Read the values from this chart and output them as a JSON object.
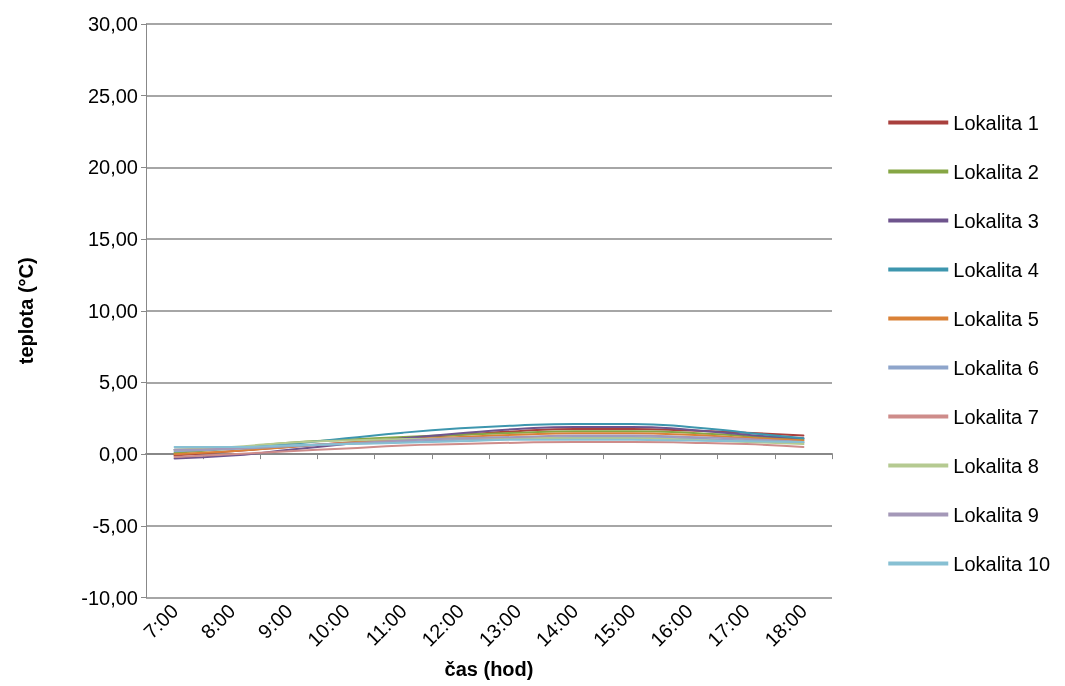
{
  "chart_data": {
    "type": "line",
    "xlabel": "čas (hod)",
    "ylabel": "teplota (°C)",
    "categories": [
      "7:00",
      "8:00",
      "9:00",
      "10:00",
      "11:00",
      "12:00",
      "13:00",
      "14:00",
      "15:00",
      "16:00",
      "17:00",
      "18:00"
    ],
    "ylim": [
      -10,
      30
    ],
    "yticks": [
      {
        "value": -10,
        "label": "-10,00"
      },
      {
        "value": -5,
        "label": "-5,00"
      },
      {
        "value": 0,
        "label": "0,00"
      },
      {
        "value": 5,
        "label": "5,00"
      },
      {
        "value": 10,
        "label": "10,00"
      },
      {
        "value": 15,
        "label": "15,00"
      },
      {
        "value": 20,
        "label": "20,00"
      },
      {
        "value": 25,
        "label": "25,00"
      },
      {
        "value": 30,
        "label": "30,00"
      }
    ],
    "grid": "y",
    "legend": "right",
    "marker": "none",
    "line_style": "solid",
    "series": [
      {
        "name": "Lokalita 1",
        "color": "#a9403d",
        "values": [
          -0.1,
          0.2,
          0.5,
          0.8,
          1.1,
          1.35,
          1.6,
          1.75,
          1.75,
          1.65,
          1.5,
          1.3
        ]
      },
      {
        "name": "Lokalita 2",
        "color": "#86a644",
        "values": [
          0.1,
          0.4,
          0.8,
          1.0,
          1.2,
          1.35,
          1.5,
          1.6,
          1.6,
          1.5,
          1.25,
          1.0
        ]
      },
      {
        "name": "Lokalita 3",
        "color": "#6e548d",
        "values": [
          -0.3,
          -0.1,
          0.3,
          0.7,
          1.1,
          1.45,
          1.75,
          1.9,
          1.9,
          1.7,
          1.35,
          1.1
        ]
      },
      {
        "name": "Lokalita 4",
        "color": "#3d96ae",
        "values": [
          0.3,
          0.4,
          0.7,
          1.1,
          1.5,
          1.8,
          2.0,
          2.1,
          2.1,
          1.9,
          1.5,
          1.1
        ]
      },
      {
        "name": "Lokalita 5",
        "color": "#da8137",
        "values": [
          0.0,
          0.2,
          0.5,
          0.8,
          1.0,
          1.2,
          1.35,
          1.45,
          1.45,
          1.35,
          1.15,
          0.95
        ]
      },
      {
        "name": "Lokalita 6",
        "color": "#8ea5cb",
        "values": [
          0.2,
          0.35,
          0.55,
          0.7,
          0.85,
          1.0,
          1.1,
          1.2,
          1.2,
          1.1,
          0.95,
          0.8
        ]
      },
      {
        "name": "Lokalita 7",
        "color": "#ce8c8a",
        "values": [
          -0.2,
          0.0,
          0.2,
          0.4,
          0.6,
          0.7,
          0.8,
          0.85,
          0.85,
          0.8,
          0.7,
          0.5
        ]
      },
      {
        "name": "Lokalita 8",
        "color": "#b5ca91",
        "values": [
          0.3,
          0.5,
          0.8,
          0.95,
          1.05,
          1.1,
          1.15,
          1.1,
          1.1,
          1.0,
          0.85,
          0.7
        ]
      },
      {
        "name": "Lokalita 9",
        "color": "#a498b8",
        "values": [
          0.3,
          0.4,
          0.6,
          0.75,
          0.95,
          1.1,
          1.2,
          1.3,
          1.3,
          1.2,
          1.05,
          0.85
        ]
      },
      {
        "name": "Lokalita 10",
        "color": "#87c0d3",
        "values": [
          0.5,
          0.5,
          0.6,
          0.7,
          0.8,
          0.9,
          1.0,
          1.0,
          1.0,
          0.95,
          0.9,
          0.85
        ]
      }
    ]
  }
}
